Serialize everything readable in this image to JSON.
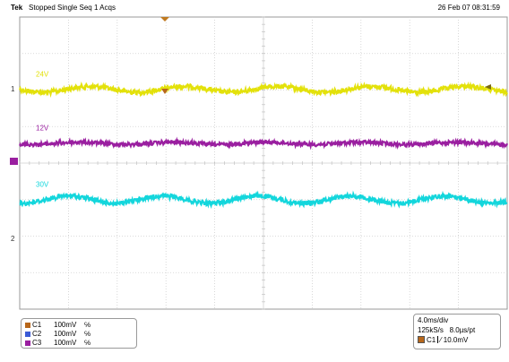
{
  "header": {
    "brand": "Tek",
    "status": "Stopped Single Seq 1 Acqs",
    "datetime": "26 Feb 07 08:31:59"
  },
  "markers": {
    "ch1": "1",
    "ch2": "2"
  },
  "chart_data": {
    "type": "line",
    "grid": true,
    "x_divisions": 10,
    "y_divisions": 8,
    "series": [
      {
        "name": "24V",
        "color": "#e3e10a",
        "baseline_div": 1.98,
        "ripple_cycles": 5.2,
        "ripple_amp_div": 0.08,
        "noise_div": 0.06
      },
      {
        "name": "12V",
        "color": "#9a1fa0",
        "baseline_div": 3.46,
        "ripple_cycles": 5.2,
        "ripple_amp_div": 0.03,
        "noise_div": 0.05
      },
      {
        "name": "30V",
        "color": "#13d6dc",
        "baseline_div": 5.0,
        "ripple_cycles": 5.2,
        "ripple_amp_div": 0.1,
        "noise_div": 0.06
      }
    ]
  },
  "channels": [
    {
      "name": "C1",
      "scale": "100mV",
      "bw": "℅",
      "color": "#b8671a"
    },
    {
      "name": "C2",
      "scale": "100mV",
      "bw": "℅",
      "color": "#3b5bd6"
    },
    {
      "name": "C3",
      "scale": "100mV",
      "bw": "℅",
      "color": "#9a1fa0"
    }
  ],
  "timebase": {
    "per_div": "4.0ms/div",
    "sample_rate": "125kS/s",
    "per_pt": "8.0µs/pt",
    "trigger_channel": "C1",
    "trigger_level": "⁄ 10.0mV",
    "trigger_color": "#b8671a"
  }
}
